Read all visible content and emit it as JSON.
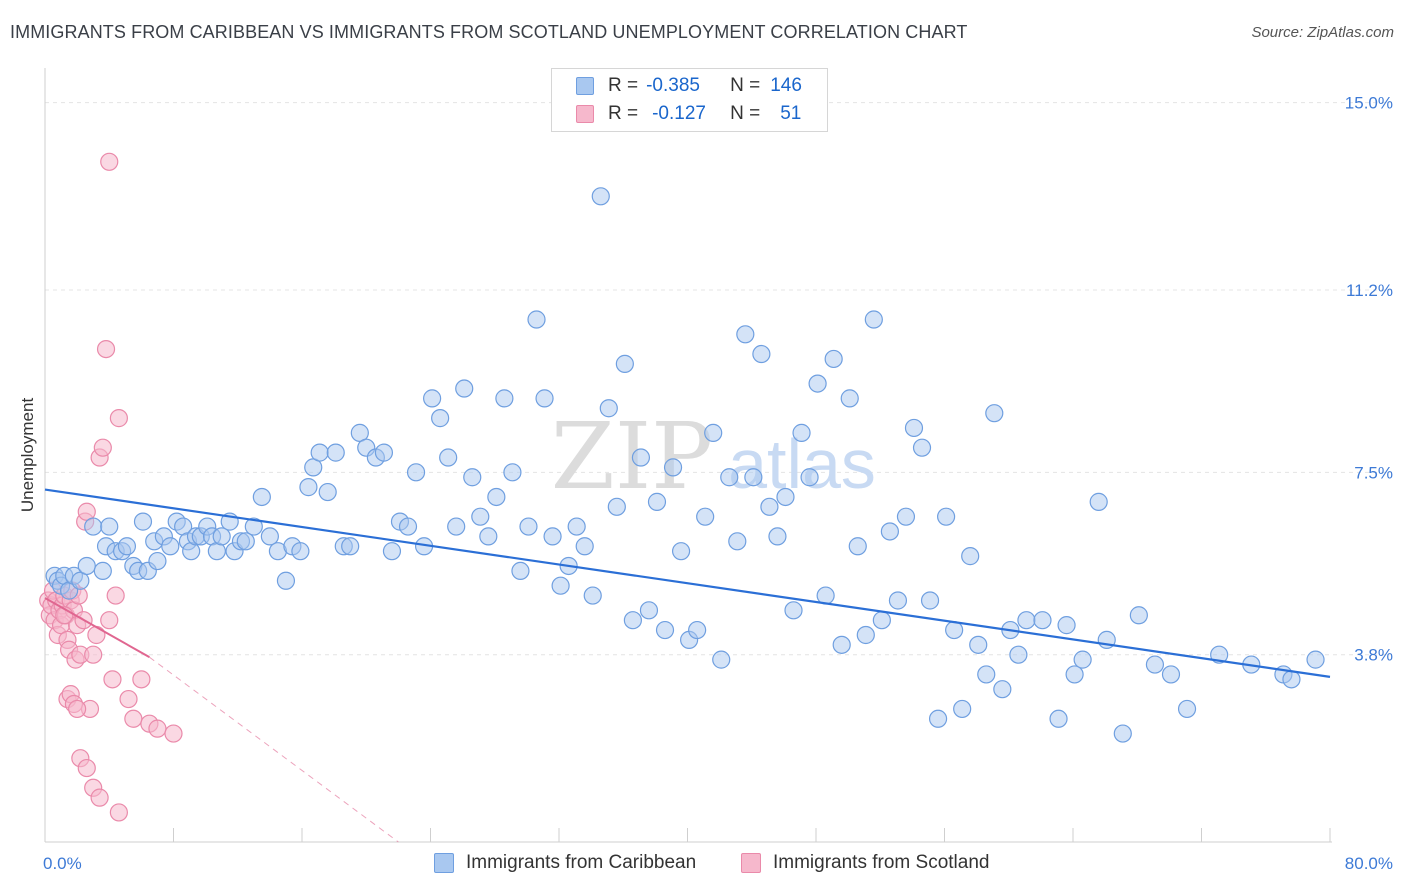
{
  "title": "IMMIGRANTS FROM CARIBBEAN VS IMMIGRANTS FROM SCOTLAND UNEMPLOYMENT CORRELATION CHART",
  "source": "Source: ZipAtlas.com",
  "watermark": {
    "zip": "ZIP",
    "atlas": "atlas"
  },
  "legend": {
    "r_label": "R =",
    "n_label": "N =",
    "rows": [
      {
        "r": "-0.385",
        "n": "146"
      },
      {
        "r": "-0.127",
        "n": "51"
      }
    ]
  },
  "colors": {
    "caribbean_fill": "#a9c8f0",
    "caribbean_stroke": "#6f9fe0",
    "caribbean_line": "#2b6fd6",
    "scotland_fill": "#f6b8cc",
    "scotland_stroke": "#ea8aaa",
    "scotland_line": "#e06690",
    "tick_label": "#3d7ad6",
    "grid": "#e4e4e4"
  },
  "chart_data": {
    "type": "scatter",
    "xlabel": "",
    "ylabel": "Unemployment",
    "xlim": [
      0,
      80
    ],
    "ylim": [
      0,
      15.5
    ],
    "x_tick_labels": [
      "0.0%",
      "80.0%"
    ],
    "y_ticks": [
      3.8,
      7.5,
      11.2,
      15.0
    ],
    "y_tick_labels": [
      "3.8%",
      "7.5%",
      "11.2%",
      "15.0%"
    ],
    "grid": true,
    "legend_position": "top-center",
    "series": [
      {
        "name": "Immigrants from Caribbean",
        "trend": {
          "x0": 0,
          "y0": 7.15,
          "x1": 80,
          "y1": 3.35
        },
        "points": [
          [
            0.6,
            5.4
          ],
          [
            0.8,
            5.3
          ],
          [
            1.0,
            5.2
          ],
          [
            1.2,
            5.4
          ],
          [
            1.5,
            5.1
          ],
          [
            1.8,
            5.4
          ],
          [
            2.2,
            5.3
          ],
          [
            2.6,
            5.6
          ],
          [
            3.0,
            6.4
          ],
          [
            3.6,
            5.5
          ],
          [
            3.8,
            6.0
          ],
          [
            4.0,
            6.4
          ],
          [
            4.4,
            5.9
          ],
          [
            4.8,
            5.9
          ],
          [
            5.1,
            6.0
          ],
          [
            5.5,
            5.6
          ],
          [
            5.8,
            5.5
          ],
          [
            6.1,
            6.5
          ],
          [
            6.4,
            5.5
          ],
          [
            6.8,
            6.1
          ],
          [
            7.0,
            5.7
          ],
          [
            7.4,
            6.2
          ],
          [
            7.8,
            6.0
          ],
          [
            8.2,
            6.5
          ],
          [
            8.6,
            6.4
          ],
          [
            8.9,
            6.1
          ],
          [
            9.1,
            5.9
          ],
          [
            9.4,
            6.2
          ],
          [
            9.7,
            6.2
          ],
          [
            10.1,
            6.4
          ],
          [
            10.4,
            6.2
          ],
          [
            10.7,
            5.9
          ],
          [
            11.0,
            6.2
          ],
          [
            11.5,
            6.5
          ],
          [
            11.8,
            5.9
          ],
          [
            12.2,
            6.1
          ],
          [
            12.5,
            6.1
          ],
          [
            13.0,
            6.4
          ],
          [
            13.5,
            7.0
          ],
          [
            14.0,
            6.2
          ],
          [
            14.5,
            5.9
          ],
          [
            15.0,
            5.3
          ],
          [
            15.4,
            6.0
          ],
          [
            15.9,
            5.9
          ],
          [
            16.4,
            7.2
          ],
          [
            16.7,
            7.6
          ],
          [
            17.1,
            7.9
          ],
          [
            17.6,
            7.1
          ],
          [
            18.1,
            7.9
          ],
          [
            18.6,
            6.0
          ],
          [
            19.0,
            6.0
          ],
          [
            19.6,
            8.3
          ],
          [
            20.0,
            8.0
          ],
          [
            20.6,
            7.8
          ],
          [
            21.1,
            7.9
          ],
          [
            21.6,
            5.9
          ],
          [
            22.1,
            6.5
          ],
          [
            22.6,
            6.4
          ],
          [
            23.1,
            7.5
          ],
          [
            23.6,
            6.0
          ],
          [
            24.1,
            9.0
          ],
          [
            24.6,
            8.6
          ],
          [
            25.1,
            7.8
          ],
          [
            25.6,
            6.4
          ],
          [
            26.1,
            9.2
          ],
          [
            26.6,
            7.4
          ],
          [
            27.1,
            6.6
          ],
          [
            27.6,
            6.2
          ],
          [
            28.1,
            7.0
          ],
          [
            28.6,
            9.0
          ],
          [
            29.1,
            7.5
          ],
          [
            29.6,
            5.5
          ],
          [
            30.1,
            6.4
          ],
          [
            30.6,
            10.6
          ],
          [
            31.1,
            9.0
          ],
          [
            31.6,
            6.2
          ],
          [
            32.1,
            5.2
          ],
          [
            32.6,
            5.6
          ],
          [
            33.1,
            6.4
          ],
          [
            33.6,
            6.0
          ],
          [
            34.1,
            5.0
          ],
          [
            34.6,
            13.1
          ],
          [
            35.1,
            8.8
          ],
          [
            35.6,
            6.8
          ],
          [
            36.1,
            9.7
          ],
          [
            36.6,
            4.5
          ],
          [
            37.1,
            7.8
          ],
          [
            37.6,
            4.7
          ],
          [
            38.1,
            6.9
          ],
          [
            38.6,
            4.3
          ],
          [
            39.1,
            7.6
          ],
          [
            39.6,
            5.9
          ],
          [
            40.1,
            4.1
          ],
          [
            40.6,
            4.3
          ],
          [
            41.1,
            6.6
          ],
          [
            41.6,
            8.3
          ],
          [
            42.1,
            3.7
          ],
          [
            42.6,
            7.4
          ],
          [
            43.1,
            6.1
          ],
          [
            43.6,
            10.3
          ],
          [
            44.1,
            7.4
          ],
          [
            44.6,
            9.9
          ],
          [
            45.1,
            6.8
          ],
          [
            45.6,
            6.2
          ],
          [
            46.1,
            7.0
          ],
          [
            46.6,
            4.7
          ],
          [
            47.1,
            8.3
          ],
          [
            47.6,
            7.4
          ],
          [
            48.1,
            9.3
          ],
          [
            48.6,
            5.0
          ],
          [
            49.1,
            9.8
          ],
          [
            49.6,
            4.0
          ],
          [
            50.1,
            9.0
          ],
          [
            50.6,
            6.0
          ],
          [
            51.1,
            4.2
          ],
          [
            51.6,
            10.6
          ],
          [
            52.1,
            4.5
          ],
          [
            52.6,
            6.3
          ],
          [
            53.1,
            4.9
          ],
          [
            53.6,
            6.6
          ],
          [
            54.1,
            8.4
          ],
          [
            54.6,
            8.0
          ],
          [
            55.1,
            4.9
          ],
          [
            55.6,
            2.5
          ],
          [
            56.1,
            6.6
          ],
          [
            56.6,
            4.3
          ],
          [
            57.1,
            2.7
          ],
          [
            57.6,
            5.8
          ],
          [
            58.1,
            4.0
          ],
          [
            58.6,
            3.4
          ],
          [
            59.1,
            8.7
          ],
          [
            59.6,
            3.1
          ],
          [
            60.1,
            4.3
          ],
          [
            60.6,
            3.8
          ],
          [
            61.1,
            4.5
          ],
          [
            62.1,
            4.5
          ],
          [
            63.1,
            2.5
          ],
          [
            63.6,
            4.4
          ],
          [
            64.1,
            3.4
          ],
          [
            64.6,
            3.7
          ],
          [
            65.6,
            6.9
          ],
          [
            66.1,
            4.1
          ],
          [
            67.1,
            2.2
          ],
          [
            68.1,
            4.6
          ],
          [
            69.1,
            3.6
          ],
          [
            70.1,
            3.4
          ],
          [
            71.1,
            2.7
          ],
          [
            73.1,
            3.8
          ],
          [
            75.1,
            3.6
          ],
          [
            77.1,
            3.4
          ],
          [
            77.6,
            3.3
          ],
          [
            79.1,
            3.7
          ]
        ]
      },
      {
        "name": "Immigrants from Scotland",
        "trend": {
          "x0": 0,
          "y0": 4.95,
          "x1": 6.5,
          "y1": 3.75,
          "dash_x1": 22,
          "dash_y1": 0
        },
        "points": [
          [
            0.2,
            4.9
          ],
          [
            0.3,
            4.6
          ],
          [
            0.4,
            4.8
          ],
          [
            0.5,
            5.1
          ],
          [
            0.6,
            4.5
          ],
          [
            0.7,
            4.9
          ],
          [
            0.8,
            4.2
          ],
          [
            0.9,
            4.7
          ],
          [
            1.0,
            4.4
          ],
          [
            1.1,
            4.8
          ],
          [
            1.2,
            5.0
          ],
          [
            1.3,
            4.6
          ],
          [
            1.4,
            4.1
          ],
          [
            1.5,
            3.9
          ],
          [
            1.6,
            4.9
          ],
          [
            1.7,
            5.1
          ],
          [
            1.8,
            4.7
          ],
          [
            1.9,
            3.7
          ],
          [
            2.0,
            4.4
          ],
          [
            2.1,
            5.0
          ],
          [
            2.2,
            3.8
          ],
          [
            2.4,
            4.5
          ],
          [
            2.5,
            6.5
          ],
          [
            2.6,
            6.7
          ],
          [
            2.8,
            2.7
          ],
          [
            3.0,
            3.8
          ],
          [
            3.2,
            4.2
          ],
          [
            3.4,
            7.8
          ],
          [
            3.6,
            8.0
          ],
          [
            3.8,
            10.0
          ],
          [
            4.0,
            4.5
          ],
          [
            4.2,
            3.3
          ],
          [
            4.4,
            5.0
          ],
          [
            4.6,
            8.6
          ],
          [
            5.2,
            2.9
          ],
          [
            5.5,
            2.5
          ],
          [
            6.0,
            3.3
          ],
          [
            6.5,
            2.4
          ],
          [
            7.0,
            2.3
          ],
          [
            8.0,
            2.2
          ],
          [
            1.4,
            2.9
          ],
          [
            1.6,
            3.0
          ],
          [
            1.8,
            2.8
          ],
          [
            2.0,
            2.7
          ],
          [
            2.2,
            1.7
          ],
          [
            2.6,
            1.5
          ],
          [
            3.0,
            1.1
          ],
          [
            3.4,
            0.9
          ],
          [
            4.0,
            13.8
          ],
          [
            4.6,
            0.6
          ],
          [
            1.2,
            4.6
          ]
        ]
      }
    ]
  }
}
